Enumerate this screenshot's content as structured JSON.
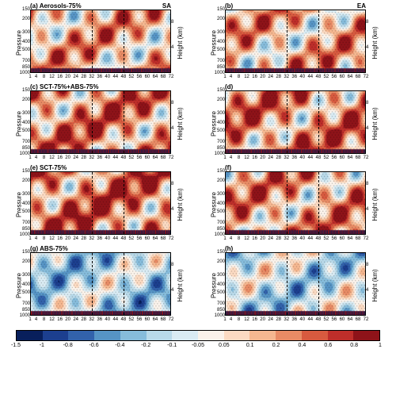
{
  "panels": [
    {
      "id": "a",
      "title": "(a) Aerosols-75%",
      "region": "SA",
      "warm": 0.55
    },
    {
      "id": "b",
      "title": "(b)",
      "region": "EA",
      "warm": 0.55
    },
    {
      "id": "c",
      "title": "(c) SCT-75%+ABS-75%",
      "region": "",
      "warm": 0.65
    },
    {
      "id": "d",
      "title": "(d)",
      "region": "",
      "warm": 0.65
    },
    {
      "id": "e",
      "title": "(e) SCT-75%",
      "region": "",
      "warm": 0.7
    },
    {
      "id": "f",
      "title": "(f)",
      "region": "",
      "warm": 0.6
    },
    {
      "id": "g",
      "title": "(g) ABS-75%",
      "region": "",
      "warm": 0.2
    },
    {
      "id": "h",
      "title": "(h)",
      "region": "",
      "warm": 0.25
    }
  ],
  "yticks": [
    150,
    200,
    300,
    400,
    500,
    700,
    850,
    1000
  ],
  "yrticks": [
    8,
    4
  ],
  "xticks": [
    1,
    4,
    8,
    12,
    16,
    20,
    24,
    28,
    32,
    36,
    40,
    44,
    48,
    52,
    56,
    60,
    64,
    68,
    72
  ],
  "ylabel": "Pressure",
  "yrlabel": "Height (km)",
  "vlines": [
    32,
    48
  ],
  "colors": [
    "#081f5c",
    "#1c3f8f",
    "#3262ab",
    "#5694c5",
    "#86bcdb",
    "#b8d9e9",
    "#d9ebf3",
    "#faf2ea",
    "#fbdac2",
    "#f5b790",
    "#e88b65",
    "#d85a3f",
    "#be2e2a",
    "#8e1319"
  ],
  "cticks": [
    -1.5,
    -1,
    -0.8,
    -0.6,
    -0.4,
    -0.2,
    -0.1,
    -0.05,
    0.05,
    0.1,
    0.2,
    0.4,
    0.6,
    0.8,
    1
  ]
}
